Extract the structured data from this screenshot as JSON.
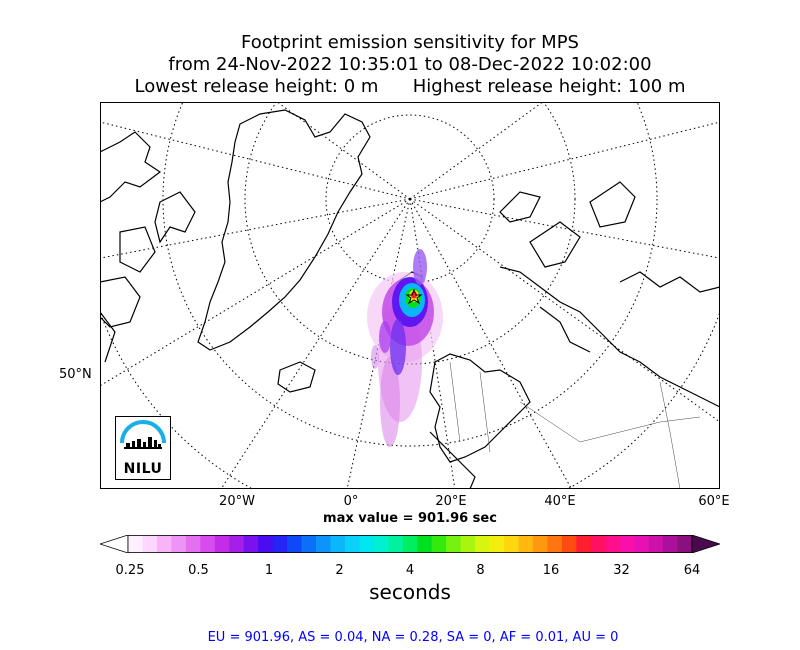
{
  "title": {
    "line1": "Footprint emission sensitivity for MPS",
    "line2": "from 24-Nov-2022 10:35:01 to 08-Dec-2022 10:02:00",
    "line3": "Lowest release height: 0 m      Highest release height: 100 m"
  },
  "map": {
    "lat_label": "50°N",
    "lon_labels": [
      "20°W",
      "0°",
      "20°E",
      "40°E",
      "60°E"
    ]
  },
  "max_value_text": "max value = 901.96 sec",
  "colorbar": {
    "tick_labels": [
      "0.25",
      "0.5",
      "1",
      "2",
      "4",
      "8",
      "16",
      "32",
      "64"
    ],
    "units": "seconds",
    "colors": [
      "#fff0ff",
      "#ffd6ff",
      "#f7b5f7",
      "#ee94f4",
      "#e370f0",
      "#d64cec",
      "#c42de8",
      "#a51fe9",
      "#7a12ee",
      "#4c0cf2",
      "#2424f4",
      "#0f48f6",
      "#0a70f8",
      "#0b95fa",
      "#0bb6fb",
      "#0bd0fb",
      "#00e6f0",
      "#00f0d0",
      "#00f2a0",
      "#00ee60",
      "#00e020",
      "#33ea10",
      "#77f210",
      "#aaf510",
      "#d8f510",
      "#f4ee10",
      "#ffd610",
      "#ffb810",
      "#ff9810",
      "#ff7610",
      "#ff4a10",
      "#ff1e30",
      "#ff1060",
      "#ff108a",
      "#f810a8",
      "#e810b4",
      "#cc10aa",
      "#aa1098",
      "#8a1080"
    ]
  },
  "stats": "EU = 901.96,  AS = 0.04,  NA = 0.28,  SA = 0,  AF = 0.01,  AU = 0",
  "logo": {
    "text": "NILU"
  }
}
